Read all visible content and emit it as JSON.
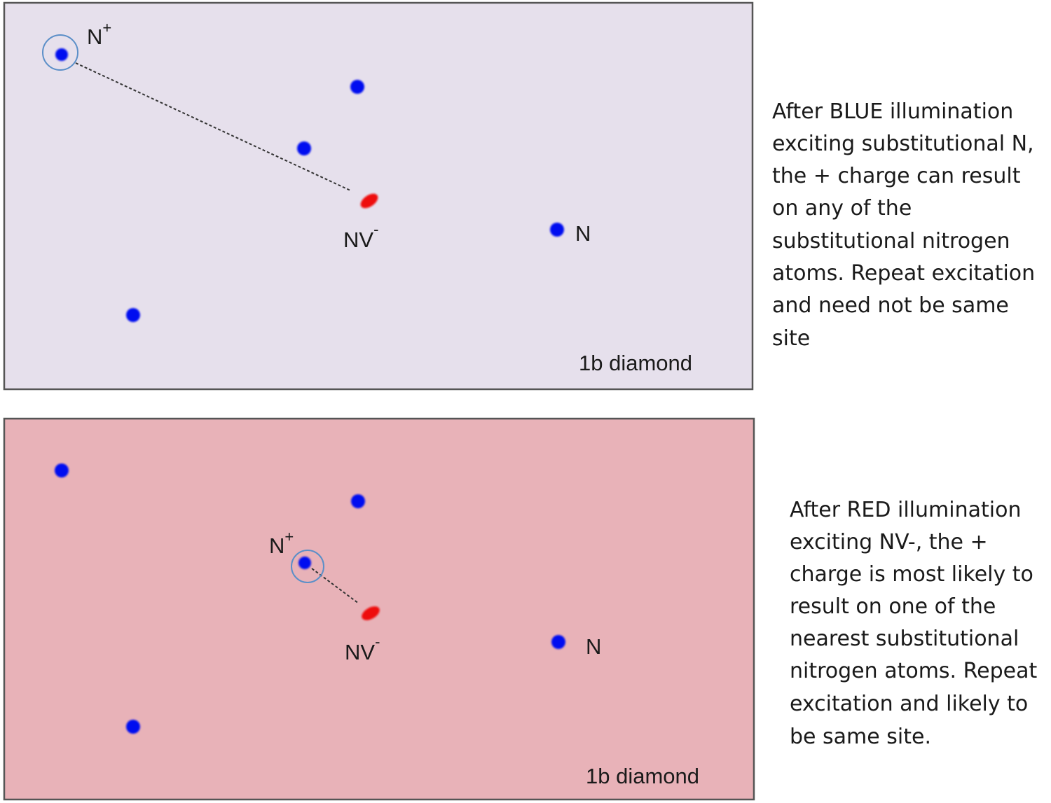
{
  "colors": {
    "blue_panel_bg": "#e6e0ec",
    "red_panel_bg": "#e8b2b8",
    "nitrogen_dot": "#0010f0",
    "nv_defect": "#ee1010",
    "ring": "#5b8fc8"
  },
  "top_panel": {
    "n_plus_label": "N",
    "n_plus_sup": "+",
    "nv_label": "NV",
    "nv_sup": "-",
    "n_label": "N",
    "caption": "1b diamond",
    "description": [
      "After BLUE illumination",
      "exciting  substitutional N,",
      "the + charge can result",
      "on any of the",
      "substitutional nitrogen",
      "atoms. Repeat excitation",
      "and need not be same",
      "site"
    ]
  },
  "bottom_panel": {
    "n_plus_label": "N",
    "n_plus_sup": "+",
    "nv_label": "NV",
    "nv_sup": "-",
    "n_label": "N",
    "caption": "1b diamond",
    "description": [
      "After RED illumination",
      "exciting  NV-, the +",
      "charge is most likely to",
      "result on one of the",
      "nearest substitutional",
      "nitrogen atoms. Repeat",
      "excitation and likely to",
      "be same site."
    ]
  }
}
